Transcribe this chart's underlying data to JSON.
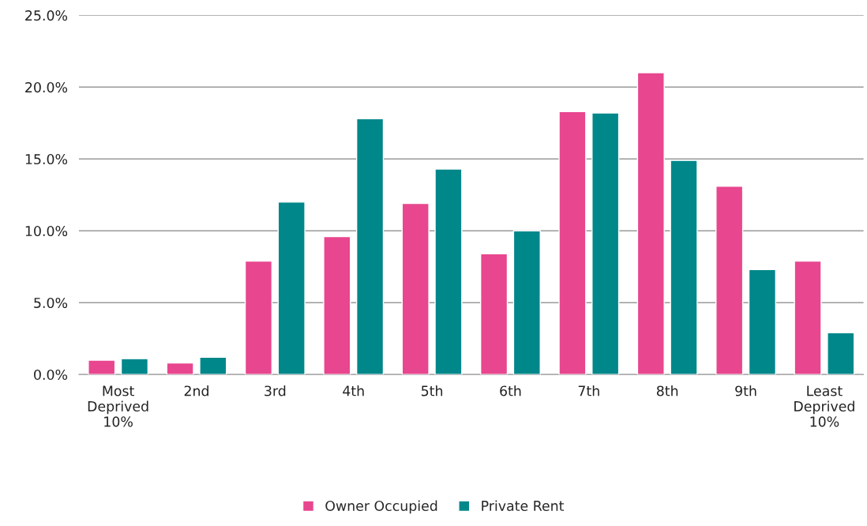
{
  "chart_data": {
    "type": "bar",
    "categories": [
      "Most\nDeprived\n10%",
      "2nd",
      "3rd",
      "4th",
      "5th",
      "6th",
      "7th",
      "8th",
      "9th",
      "Least\nDeprived\n10%"
    ],
    "series": [
      {
        "name": "Owner Occupied",
        "color": "#e8468f",
        "values": [
          1.0,
          0.8,
          7.9,
          9.6,
          11.9,
          8.4,
          18.3,
          21.0,
          13.1,
          7.9
        ]
      },
      {
        "name": "Private Rent",
        "color": "#00878a",
        "values": [
          1.1,
          1.2,
          12.0,
          17.8,
          14.3,
          10.0,
          18.2,
          14.9,
          7.3,
          2.9
        ]
      }
    ],
    "ylim": [
      0,
      25
    ],
    "yticks": [
      {
        "value": 0,
        "label": "0.0%"
      },
      {
        "value": 5,
        "label": "5.0%"
      },
      {
        "value": 10,
        "label": "10.0%"
      },
      {
        "value": 15,
        "label": "15.0%"
      },
      {
        "value": 20,
        "label": "20.0%"
      },
      {
        "value": 25,
        "label": "25.0%"
      }
    ],
    "grid": "y",
    "legend": "bottom"
  }
}
